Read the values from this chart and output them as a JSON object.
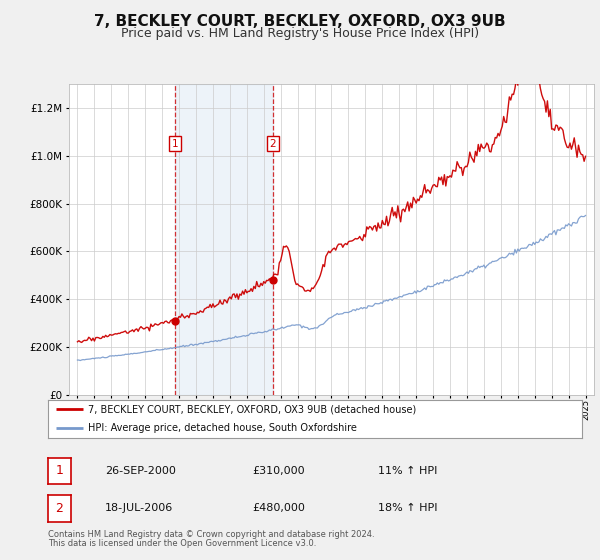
{
  "title": "7, BECKLEY COURT, BECKLEY, OXFORD, OX3 9UB",
  "subtitle": "Price paid vs. HM Land Registry's House Price Index (HPI)",
  "legend_line1": "7, BECKLEY COURT, BECKLEY, OXFORD, OX3 9UB (detached house)",
  "legend_line2": "HPI: Average price, detached house, South Oxfordshire",
  "footnote1": "Contains HM Land Registry data © Crown copyright and database right 2024.",
  "footnote2": "This data is licensed under the Open Government Licence v3.0.",
  "transaction1_date": "26-SEP-2000",
  "transaction1_price": "£310,000",
  "transaction1_hpi": "11% ↑ HPI",
  "transaction2_date": "18-JUL-2006",
  "transaction2_price": "£480,000",
  "transaction2_hpi": "18% ↑ HPI",
  "sale1_date_num": 2000.74,
  "sale1_price": 310000,
  "sale2_date_num": 2006.54,
  "sale2_price": 480000,
  "hpi_color": "#7799cc",
  "property_color": "#cc0000",
  "background_color": "#f0f0f0",
  "plot_bg_color": "#ffffff",
  "shade_color": "#ccddf0",
  "grid_color": "#cccccc",
  "ylim_min": 0,
  "ylim_max": 1300000,
  "xlim_min": 1994.5,
  "xlim_max": 2025.5,
  "title_fontsize": 11,
  "subtitle_fontsize": 9
}
